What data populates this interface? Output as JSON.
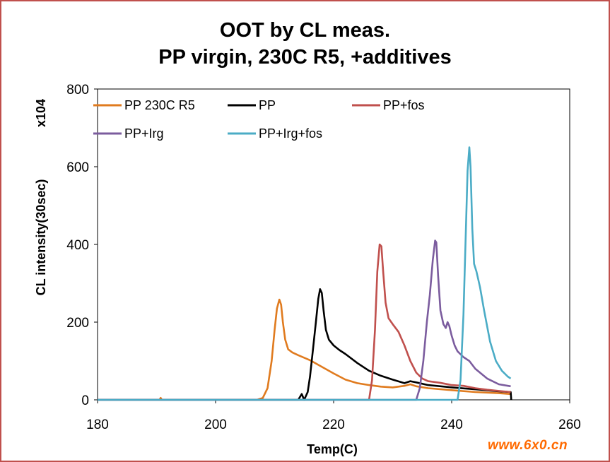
{
  "chart_data": {
    "type": "line",
    "title_line1": "OOT by CL meas.",
    "title_line2": "PP virgin, 230C R5, +additives",
    "xlabel": "Temp(C)",
    "ylabel": "CL intensity(30sec)",
    "y_multiplier": "x104",
    "xlim": [
      180,
      260
    ],
    "ylim": [
      0,
      800
    ],
    "xticks": [
      180,
      200,
      220,
      240,
      260
    ],
    "yticks": [
      0,
      200,
      400,
      600,
      800
    ],
    "grid": false,
    "legend_position": "top",
    "series": [
      {
        "name": "PP 230C R5",
        "color": "#e07b1f",
        "x": [
          180,
          190.5,
          190.7,
          190.9,
          200,
          207,
          208,
          208.8,
          209.5,
          210,
          210.4,
          210.8,
          211.1,
          211.4,
          211.8,
          212.3,
          213,
          214,
          216,
          218,
          220,
          222,
          224,
          226,
          228,
          230,
          232,
          233,
          234,
          236,
          240,
          244,
          248,
          250
        ],
        "y": [
          0,
          0,
          5,
          0,
          0,
          0,
          5,
          30,
          100,
          180,
          235,
          258,
          245,
          200,
          155,
          130,
          122,
          115,
          102,
          85,
          68,
          52,
          43,
          38,
          34,
          32,
          36,
          40,
          35,
          30,
          25,
          20,
          17,
          15
        ]
      },
      {
        "name": "PP",
        "color": "#000000",
        "x": [
          180,
          214,
          214.6,
          215,
          215.6,
          216,
          216.5,
          217,
          217.4,
          217.7,
          218,
          218.3,
          218.7,
          219.2,
          220,
          221,
          222,
          224,
          226,
          228,
          230,
          232,
          233,
          234,
          236,
          240,
          244,
          248,
          250,
          250.1
        ],
        "y": [
          0,
          0,
          15,
          0,
          20,
          60,
          130,
          200,
          260,
          285,
          275,
          230,
          180,
          155,
          140,
          128,
          118,
          95,
          75,
          62,
          52,
          43,
          48,
          45,
          38,
          32,
          27,
          22,
          20,
          0
        ]
      },
      {
        "name": "PP+fos",
        "color": "#c0504d",
        "x": [
          180,
          226,
          226.5,
          227,
          227.4,
          227.8,
          228.1,
          228.4,
          228.8,
          229.3,
          230,
          231,
          232,
          233,
          234,
          235,
          236,
          238,
          240,
          242,
          244,
          246,
          248,
          250
        ],
        "y": [
          0,
          0,
          50,
          180,
          330,
          400,
          395,
          330,
          250,
          210,
          195,
          175,
          140,
          100,
          70,
          55,
          48,
          44,
          38,
          36,
          30,
          26,
          23,
          20
        ]
      },
      {
        "name": "PP+Irg",
        "color": "#7b5c9e",
        "x": [
          180,
          234,
          234.6,
          235.2,
          235.8,
          236.3,
          236.8,
          237.2,
          237.4,
          237.7,
          238.1,
          238.6,
          239.0,
          239.3,
          239.6,
          240.0,
          240.5,
          241,
          242,
          243,
          244,
          246,
          248,
          250
        ],
        "y": [
          0,
          0,
          30,
          100,
          200,
          270,
          360,
          410,
          405,
          320,
          230,
          195,
          185,
          200,
          190,
          165,
          140,
          125,
          110,
          100,
          80,
          55,
          40,
          35
        ]
      },
      {
        "name": "PP+Irg+fos",
        "color": "#4bacc6",
        "x": [
          180,
          230,
          241,
          241.5,
          242,
          242.4,
          242.7,
          243.0,
          243.2,
          243.5,
          243.8,
          244.2,
          244.8,
          245.5,
          246.5,
          247.5,
          248.5,
          249.5,
          250
        ],
        "y": [
          0,
          0,
          0,
          50,
          220,
          430,
          590,
          650,
          600,
          440,
          350,
          330,
          290,
          230,
          150,
          100,
          75,
          60,
          55
        ]
      }
    ]
  },
  "watermark": "www.6x0.cn"
}
